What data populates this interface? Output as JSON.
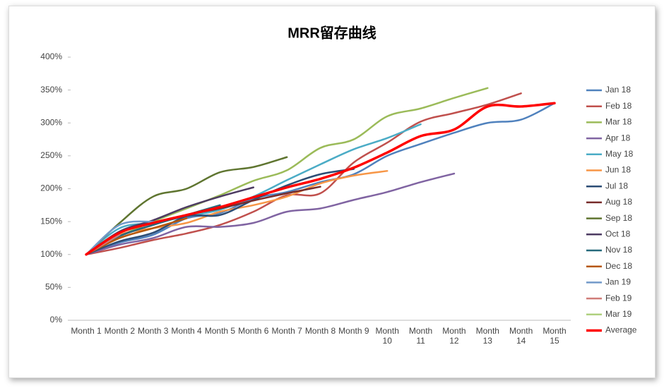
{
  "chart_data": {
    "type": "line",
    "title": "MRR留存曲线",
    "categories": [
      "Month 1",
      "Month 2",
      "Month 3",
      "Month 4",
      "Month 5",
      "Month 6",
      "Month 7",
      "Month 8",
      "Month 9",
      "Month 10",
      "Month 11",
      "Month 12",
      "Month 13",
      "Month 14",
      "Month 15"
    ],
    "ylim": [
      0,
      400
    ],
    "yticks": [
      {
        "value": 0,
        "label": "0%"
      },
      {
        "value": 50,
        "label": "50%"
      },
      {
        "value": 100,
        "label": "100%"
      },
      {
        "value": 150,
        "label": "150%"
      },
      {
        "value": 200,
        "label": "200%"
      },
      {
        "value": 250,
        "label": "250%"
      },
      {
        "value": 300,
        "label": "300%"
      },
      {
        "value": 350,
        "label": "350%"
      },
      {
        "value": 400,
        "label": "400%"
      }
    ],
    "grid": false,
    "legend": "right",
    "series": [
      {
        "name": "Jan 18",
        "color": "#4f81bd",
        "values": [
          100,
          118,
          130,
          155,
          163,
          185,
          195,
          210,
          222,
          250,
          268,
          285,
          300,
          305,
          330
        ]
      },
      {
        "name": "Feb 18",
        "color": "#c0504d",
        "values": [
          100,
          110,
          122,
          132,
          145,
          165,
          190,
          193,
          240,
          270,
          302,
          315,
          328,
          345,
          null
        ]
      },
      {
        "name": "Mar 18",
        "color": "#9bbb59",
        "values": [
          100,
          128,
          150,
          170,
          190,
          212,
          228,
          262,
          275,
          310,
          322,
          338,
          353,
          null,
          null
        ]
      },
      {
        "name": "Apr 18",
        "color": "#8064a2",
        "values": [
          100,
          115,
          125,
          142,
          142,
          148,
          165,
          170,
          183,
          195,
          210,
          223,
          null,
          null,
          null
        ]
      },
      {
        "name": "May 18",
        "color": "#4bacc6",
        "values": [
          100,
          140,
          148,
          158,
          168,
          188,
          213,
          237,
          260,
          277,
          298,
          null,
          null,
          null,
          null
        ]
      },
      {
        "name": "Jun 18",
        "color": "#f79646",
        "values": [
          100,
          130,
          140,
          148,
          165,
          175,
          188,
          208,
          220,
          227,
          null,
          null,
          null,
          null,
          null
        ]
      },
      {
        "name": "Jul 18",
        "color": "#2c4d75",
        "values": [
          100,
          120,
          133,
          158,
          160,
          183,
          205,
          222,
          230,
          null,
          null,
          null,
          null,
          null,
          null
        ]
      },
      {
        "name": "Aug 18",
        "color": "#772c2a",
        "values": [
          100,
          128,
          145,
          160,
          170,
          182,
          193,
          203,
          null,
          null,
          null,
          null,
          null,
          null,
          null
        ]
      },
      {
        "name": "Sep 18",
        "color": "#5f7530",
        "values": [
          100,
          148,
          188,
          200,
          225,
          233,
          248,
          null,
          null,
          null,
          null,
          null,
          null,
          null,
          null
        ]
      },
      {
        "name": "Oct 18",
        "color": "#4d3b62",
        "values": [
          100,
          135,
          152,
          172,
          188,
          202,
          null,
          null,
          null,
          null,
          null,
          null,
          null,
          null,
          null
        ]
      },
      {
        "name": "Nov 18",
        "color": "#276a7c",
        "values": [
          100,
          128,
          145,
          160,
          175,
          null,
          null,
          null,
          null,
          null,
          null,
          null,
          null,
          null,
          null
        ]
      },
      {
        "name": "Dec 18",
        "color": "#b65708",
        "values": [
          100,
          125,
          140,
          155,
          null,
          null,
          null,
          null,
          null,
          null,
          null,
          null,
          null,
          null,
          null
        ]
      },
      {
        "name": "Jan 19",
        "color": "#729aca",
        "values": [
          100,
          145,
          150,
          null,
          null,
          null,
          null,
          null,
          null,
          null,
          null,
          null,
          null,
          null,
          null
        ]
      },
      {
        "name": "Feb 19",
        "color": "#d07c79",
        "values": [
          100,
          130,
          null,
          null,
          null,
          null,
          null,
          null,
          null,
          null,
          null,
          null,
          null,
          null,
          null
        ]
      },
      {
        "name": "Mar 19",
        "color": "#afd07f",
        "values": [
          100,
          null,
          null,
          null,
          null,
          null,
          null,
          null,
          null,
          null,
          null,
          null,
          null,
          null,
          null
        ]
      },
      {
        "name": "Average",
        "color": "#ff0000",
        "values": [
          100,
          133,
          148,
          160,
          172,
          187,
          202,
          215,
          232,
          255,
          280,
          290,
          325,
          325,
          330
        ]
      }
    ]
  }
}
